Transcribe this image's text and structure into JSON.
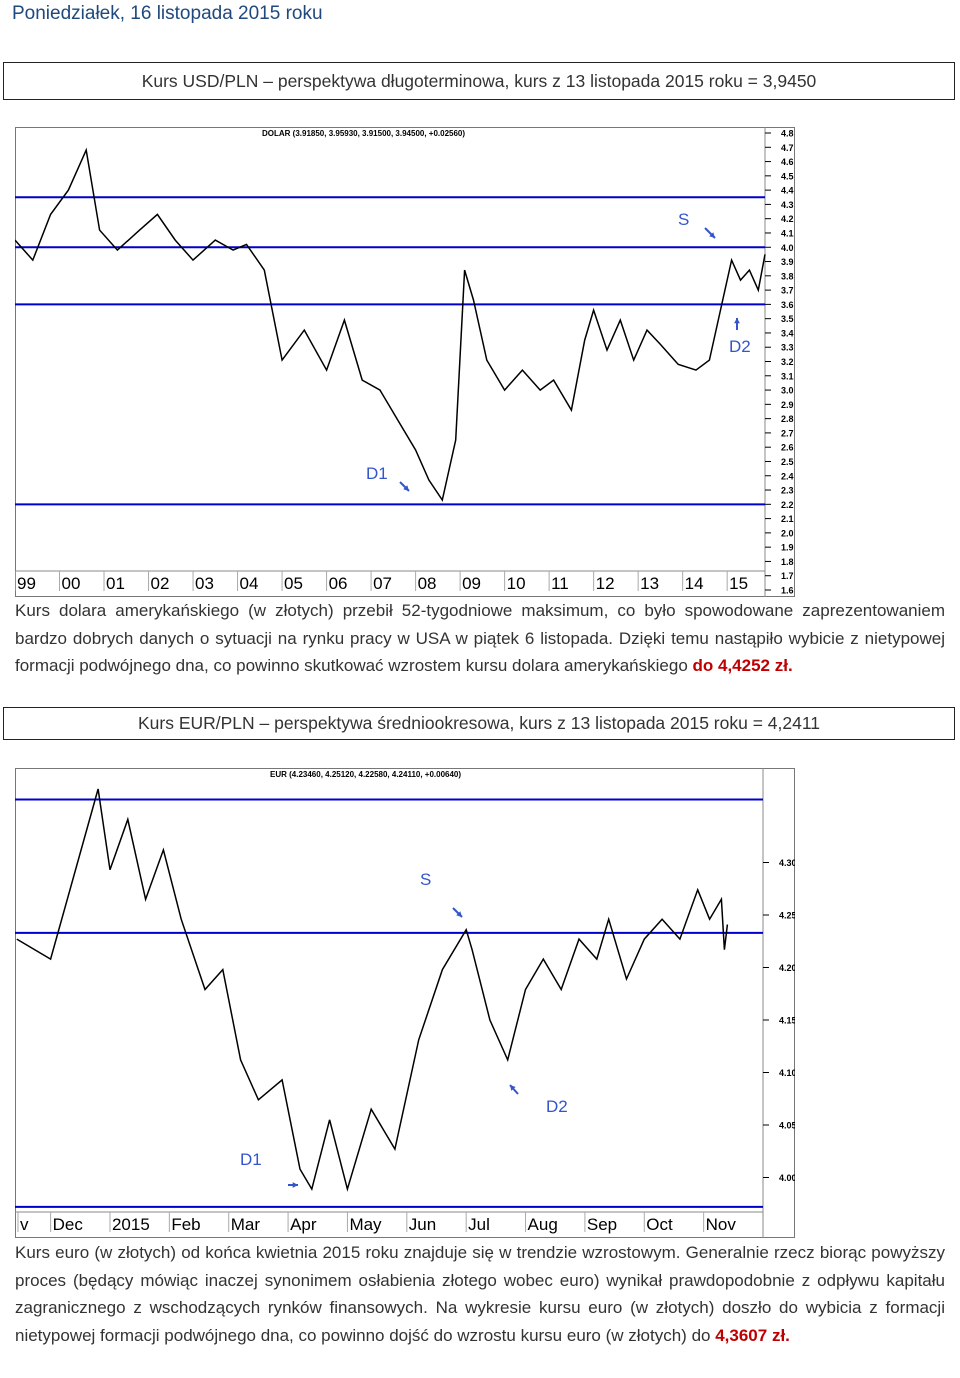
{
  "header": {
    "title": "Poniedziałek, 16 listopada 2015 roku"
  },
  "sections": [
    {
      "heading": "Kurs USD/PLN – perspektywa długoterminowa, kurs z 13 listopada 2015 roku = 3,9450",
      "chart": {
        "type": "line",
        "title": "DOLAR (3.91850, 3.95930, 3.91500, 3.94500, +0.02560)",
        "color": "#000000",
        "line_color": "#0000cc",
        "x": [
          1999.0,
          1999.4,
          1999.8,
          2000.2,
          2000.6,
          2000.9,
          2001.3,
          2001.8,
          2002.2,
          2002.6,
          2003.0,
          2003.5,
          2003.9,
          2004.2,
          2004.6,
          2005.0,
          2005.5,
          2006.0,
          2006.4,
          2006.8,
          2007.2,
          2007.6,
          2008.0,
          2008.3,
          2008.6,
          2008.9,
          2009.1,
          2009.3,
          2009.6,
          2010.0,
          2010.4,
          2010.8,
          2011.1,
          2011.5,
          2011.8,
          2012.0,
          2012.3,
          2012.6,
          2012.9,
          2013.2,
          2013.5,
          2013.9,
          2014.3,
          2014.6,
          2014.9,
          2015.1,
          2015.3,
          2015.5,
          2015.7,
          2015.85
        ],
        "values": [
          4.05,
          3.91,
          4.23,
          4.4,
          4.68,
          4.12,
          3.98,
          4.12,
          4.23,
          4.05,
          3.91,
          4.05,
          3.98,
          4.02,
          3.84,
          3.21,
          3.42,
          3.14,
          3.49,
          3.07,
          3.0,
          2.79,
          2.58,
          2.37,
          2.23,
          2.65,
          3.84,
          3.63,
          3.21,
          3.0,
          3.14,
          3.0,
          3.07,
          2.86,
          3.35,
          3.56,
          3.28,
          3.49,
          3.21,
          3.42,
          3.32,
          3.18,
          3.14,
          3.21,
          3.63,
          3.91,
          3.77,
          3.84,
          3.7,
          3.95
        ],
        "reference_lines": [
          4.35,
          4.0,
          3.6,
          2.2
        ],
        "xlim": [
          1999,
          2015.85
        ],
        "ylim": [
          1.6,
          4.8
        ],
        "xticks": [
          {
            "value": 1999,
            "label": "99"
          },
          {
            "value": 2000,
            "label": "00"
          },
          {
            "value": 2001,
            "label": "01"
          },
          {
            "value": 2002,
            "label": "02"
          },
          {
            "value": 2003,
            "label": "03"
          },
          {
            "value": 2004,
            "label": "04"
          },
          {
            "value": 2005,
            "label": "05"
          },
          {
            "value": 2006,
            "label": "06"
          },
          {
            "value": 2007,
            "label": "07"
          },
          {
            "value": 2008,
            "label": "08"
          },
          {
            "value": 2009,
            "label": "09"
          },
          {
            "value": 2010,
            "label": "10"
          },
          {
            "value": 2011,
            "label": "11"
          },
          {
            "value": 2012,
            "label": "12"
          },
          {
            "value": 2013,
            "label": "13"
          },
          {
            "value": 2014,
            "label": "14"
          },
          {
            "value": 2015,
            "label": "15"
          }
        ],
        "yticks": [
          4.8,
          4.7,
          4.6,
          4.5,
          4.4,
          4.3,
          4.2,
          4.1,
          {
            "value": 4,
            "label": "4.0"
          },
          3.9,
          3.8,
          3.7,
          3.6,
          3.5,
          3.4,
          3.3,
          3.2,
          3.1,
          {
            "value": 3,
            "label": "3.0"
          },
          2.9,
          2.8,
          2.7,
          2.6,
          2.5,
          2.4,
          2.3,
          2.2,
          2.1,
          {
            "value": 2,
            "label": "2.0"
          },
          1.9,
          1.8,
          1.7,
          1.6
        ],
        "annotations": [
          "S",
          "D1",
          "D2"
        ]
      },
      "paragraph": {
        "text": "Kurs dolara amerykańskiego (w złotych) przebił 52-tygodniowe maksimum, co było spowodowane zaprezentowaniem bardzo dobrych danych o sytuacji na rynku pracy w USA w piątek 6 listopada. Dzięki temu nastąpiło wybicie z nietypowej formacji podwójnego dna, co powinno skutkować wzrostem kursu dolara amerykańskiego",
        "highlight": "do 4,4252 zł."
      }
    },
    {
      "heading": "Kurs EUR/PLN – perspektywa średniookresowa, kurs z 13 listopada  2015 roku = 4,2411",
      "chart": {
        "type": "line",
        "title": "EUR (4.23460, 4.25120, 4.22580, 4.24110, +0.00640)",
        "color": "#000000",
        "line_color": "#0000cc",
        "x": [
          -0.57,
          0,
          0.8,
          1.0,
          1.3,
          1.6,
          1.9,
          2.2,
          2.6,
          2.9,
          3.2,
          3.5,
          3.9,
          4.2,
          4.4,
          4.7,
          5.0,
          5.4,
          5.8,
          6.2,
          6.6,
          7.0,
          7.1,
          7.4,
          7.7,
          8.0,
          8.3,
          8.6,
          8.9,
          9.2,
          9.4,
          9.7,
          10.0,
          10.3,
          10.6,
          10.9,
          11.1,
          11.3,
          11.35,
          11.4
        ],
        "values": [
          4.227,
          4.208,
          4.37,
          4.293,
          4.341,
          4.265,
          4.312,
          4.246,
          4.179,
          4.198,
          4.112,
          4.074,
          4.093,
          4.008,
          3.989,
          4.055,
          3.989,
          4.065,
          4.027,
          4.131,
          4.198,
          4.236,
          4.217,
          4.15,
          4.112,
          4.179,
          4.208,
          4.179,
          4.227,
          4.208,
          4.246,
          4.189,
          4.227,
          4.246,
          4.227,
          4.274,
          4.246,
          4.265,
          4.217,
          4.241
        ],
        "reference_lines": [
          4.36,
          4.233,
          3.972
        ],
        "xlim": [
          -0.6,
          12
        ],
        "ylim": [
          3.97,
          4.39
        ],
        "xticks": [
          {
            "value": -0.55,
            "label": "v"
          },
          {
            "value": 0,
            "label": "Dec"
          },
          {
            "value": 1,
            "label": "2015"
          },
          {
            "value": 2,
            "label": "Feb"
          },
          {
            "value": 3,
            "label": "Mar"
          },
          {
            "value": 4,
            "label": "Apr"
          },
          {
            "value": 5,
            "label": "May"
          },
          {
            "value": 6,
            "label": "Jun"
          },
          {
            "value": 7,
            "label": "Jul"
          },
          {
            "value": 8,
            "label": "Aug"
          },
          {
            "value": 9,
            "label": "Sep"
          },
          {
            "value": 10,
            "label": "Oct"
          },
          {
            "value": 11,
            "label": "Nov"
          }
        ],
        "yticks": [
          {
            "value": 4.3,
            "label": "4.30"
          },
          4.25,
          {
            "value": 4.2,
            "label": "4.20"
          },
          4.15,
          {
            "value": 4.1,
            "label": "4.10"
          },
          4.05,
          {
            "value": 4,
            "label": "4.00"
          }
        ],
        "annotations": [
          "S",
          "D1",
          "D2"
        ]
      },
      "paragraph": {
        "text": "Kurs euro (w złotych) od końca kwietnia 2015 roku znajduje się w trendzie wzrostowym. Generalnie rzecz biorąc powyższy proces (będący mówiąc inaczej synonimem osłabienia złotego wobec euro) wynikał prawdopodobnie z odpływu kapitału zagranicznego z wschodzących rynków finansowych. Na wykresie kursu euro (w złotych) doszło do wybicia z formacji nietypowej formacji podwójnego dna, co powinno dojść do wzrostu kursu euro (w złotych) do",
        "highlight": "4,3607 zł."
      }
    }
  ]
}
